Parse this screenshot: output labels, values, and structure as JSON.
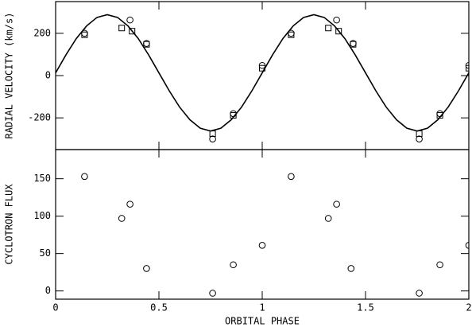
{
  "chart_data": [
    {
      "type": "scatter",
      "ylabel": "RADIAL VELOCITY (km/s)",
      "xlim": [
        0,
        2
      ],
      "xticks": [
        0,
        0.5,
        1,
        1.5,
        2
      ],
      "ylim": [
        -350,
        350
      ],
      "yticks": [
        -200,
        0,
        200
      ],
      "series": [
        {
          "marker": "line",
          "color": "#000000",
          "x": [
            0,
            0.05,
            0.1,
            0.15,
            0.2,
            0.25,
            0.3,
            0.35,
            0.4,
            0.45,
            0.5,
            0.55,
            0.6,
            0.65,
            0.7,
            0.75,
            0.8,
            0.85,
            0.9,
            0.95,
            1,
            1.05,
            1.1,
            1.15,
            1.2,
            1.25,
            1.3,
            1.35,
            1.4,
            1.45,
            1.5,
            1.55,
            1.6,
            1.65,
            1.7,
            1.75,
            1.8,
            1.85,
            1.9,
            1.95,
            2
          ],
          "values": [
            13,
            98,
            175,
            235,
            275,
            288,
            275,
            235,
            175,
            98,
            13,
            -72,
            -149,
            -209,
            -249,
            -262,
            -249,
            -209,
            -149,
            -72,
            13,
            98,
            175,
            235,
            275,
            288,
            275,
            235,
            175,
            98,
            13,
            -72,
            -149,
            -209,
            -249,
            -262,
            -249,
            -209,
            -149,
            -72,
            13
          ]
        },
        {
          "marker": "square",
          "color": "#000000",
          "x": [
            0.14,
            0.32,
            0.37,
            0.44,
            0.76,
            0.86,
            1.0,
            1.14,
            1.32,
            1.37,
            1.44,
            1.76,
            1.86,
            2.0
          ],
          "values": [
            193,
            225,
            210,
            148,
            -275,
            -188,
            35,
            193,
            225,
            210,
            148,
            -275,
            -188,
            35
          ]
        },
        {
          "marker": "circle",
          "color": "#000000",
          "x": [
            0.14,
            0.36,
            0.44,
            0.76,
            0.86,
            1.0,
            1.14,
            1.36,
            1.44,
            1.76,
            1.86,
            2.0
          ],
          "values": [
            200,
            263,
            152,
            -300,
            -180,
            48,
            200,
            263,
            152,
            -300,
            -180,
            48
          ]
        }
      ]
    },
    {
      "type": "scatter",
      "ylabel": "CYCLOTRON FLUX",
      "xlabel": "ORBITAL PHASE",
      "xlim": [
        0,
        2
      ],
      "xticks": [
        0,
        0.5,
        1,
        1.5,
        2
      ],
      "ylim": [
        -11,
        189
      ],
      "yticks": [
        0,
        50,
        100,
        150
      ],
      "series": [
        {
          "marker": "circle",
          "color": "#000000",
          "x": [
            0.14,
            0.32,
            0.36,
            0.44,
            0.76,
            0.86,
            1.0,
            1.14,
            1.32,
            1.36,
            1.43,
            1.76,
            1.86,
            2.0
          ],
          "values": [
            153,
            97,
            116,
            30,
            -3,
            35,
            61,
            153,
            97,
            116,
            30,
            -3,
            35,
            61
          ]
        }
      ]
    }
  ]
}
